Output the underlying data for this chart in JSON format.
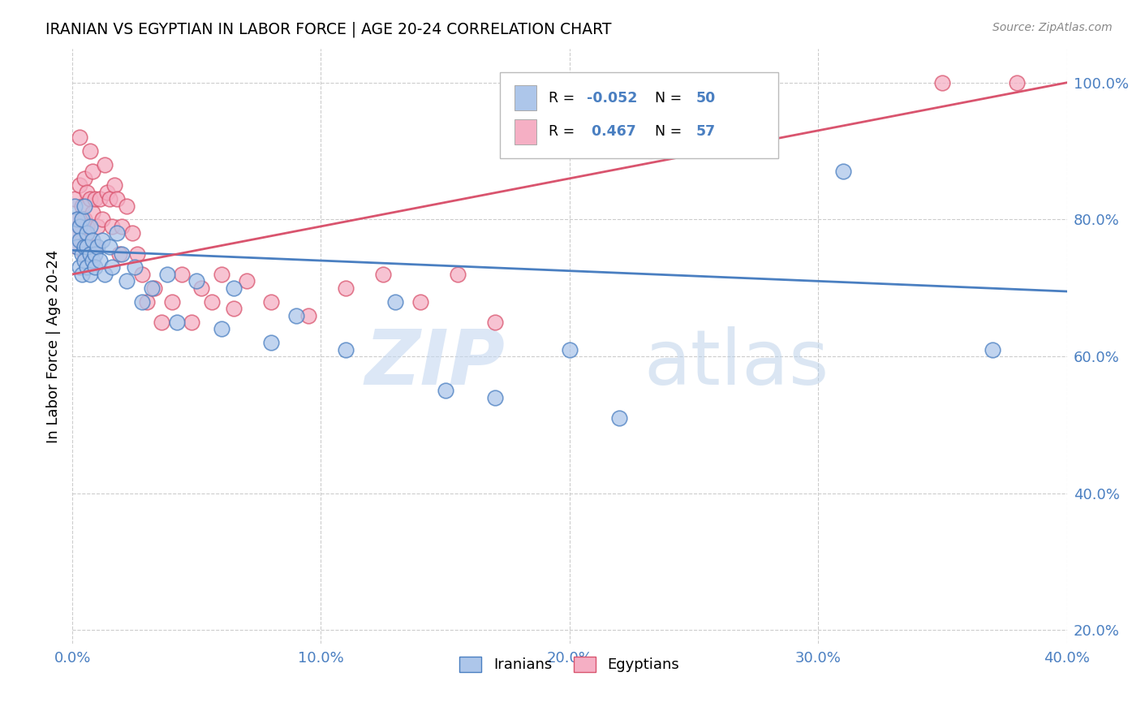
{
  "title": "IRANIAN VS EGYPTIAN IN LABOR FORCE | AGE 20-24 CORRELATION CHART",
  "source": "Source: ZipAtlas.com",
  "ylabel": "In Labor Force | Age 20-24",
  "xlim": [
    0.0,
    0.4
  ],
  "ylim": [
    0.18,
    1.05
  ],
  "legend_r_iranian": "-0.052",
  "legend_n_iranian": "50",
  "legend_r_egyptian": "0.467",
  "legend_n_egyptian": "57",
  "color_iranian": "#adc6ea",
  "color_egyptian": "#f5afc4",
  "line_color_iranian": "#4a7fc1",
  "line_color_egyptian": "#d9546e",
  "watermark_zip": "ZIP",
  "watermark_atlas": "atlas",
  "iranians_x": [
    0.001,
    0.001,
    0.002,
    0.002,
    0.003,
    0.003,
    0.003,
    0.004,
    0.004,
    0.004,
    0.005,
    0.005,
    0.005,
    0.006,
    0.006,
    0.006,
    0.007,
    0.007,
    0.007,
    0.008,
    0.008,
    0.009,
    0.009,
    0.01,
    0.011,
    0.012,
    0.013,
    0.015,
    0.016,
    0.018,
    0.02,
    0.022,
    0.025,
    0.028,
    0.032,
    0.038,
    0.042,
    0.05,
    0.06,
    0.065,
    0.08,
    0.09,
    0.11,
    0.13,
    0.15,
    0.17,
    0.2,
    0.22,
    0.31,
    0.37
  ],
  "iranians_y": [
    0.78,
    0.82,
    0.8,
    0.76,
    0.79,
    0.73,
    0.77,
    0.75,
    0.72,
    0.8,
    0.76,
    0.74,
    0.82,
    0.78,
    0.73,
    0.76,
    0.75,
    0.72,
    0.79,
    0.74,
    0.77,
    0.75,
    0.73,
    0.76,
    0.74,
    0.77,
    0.72,
    0.76,
    0.73,
    0.78,
    0.75,
    0.71,
    0.73,
    0.68,
    0.7,
    0.72,
    0.65,
    0.71,
    0.64,
    0.7,
    0.62,
    0.66,
    0.61,
    0.68,
    0.55,
    0.54,
    0.61,
    0.51,
    0.87,
    0.61
  ],
  "egyptians_x": [
    0.001,
    0.001,
    0.002,
    0.002,
    0.003,
    0.003,
    0.003,
    0.004,
    0.004,
    0.005,
    0.005,
    0.005,
    0.006,
    0.006,
    0.006,
    0.007,
    0.007,
    0.008,
    0.008,
    0.009,
    0.009,
    0.01,
    0.011,
    0.012,
    0.013,
    0.014,
    0.015,
    0.016,
    0.017,
    0.018,
    0.019,
    0.02,
    0.022,
    0.024,
    0.026,
    0.028,
    0.03,
    0.033,
    0.036,
    0.04,
    0.044,
    0.048,
    0.052,
    0.056,
    0.06,
    0.065,
    0.07,
    0.08,
    0.095,
    0.11,
    0.125,
    0.14,
    0.155,
    0.17,
    0.19,
    0.35,
    0.38
  ],
  "egyptians_y": [
    0.78,
    0.83,
    0.8,
    0.76,
    0.85,
    0.79,
    0.92,
    0.82,
    0.77,
    0.75,
    0.8,
    0.86,
    0.78,
    0.84,
    0.79,
    0.9,
    0.83,
    0.81,
    0.87,
    0.76,
    0.83,
    0.79,
    0.83,
    0.8,
    0.88,
    0.84,
    0.83,
    0.79,
    0.85,
    0.83,
    0.75,
    0.79,
    0.82,
    0.78,
    0.75,
    0.72,
    0.68,
    0.7,
    0.65,
    0.68,
    0.72,
    0.65,
    0.7,
    0.68,
    0.72,
    0.67,
    0.71,
    0.68,
    0.66,
    0.7,
    0.72,
    0.68,
    0.72,
    0.65,
    1.0,
    1.0,
    1.0
  ]
}
